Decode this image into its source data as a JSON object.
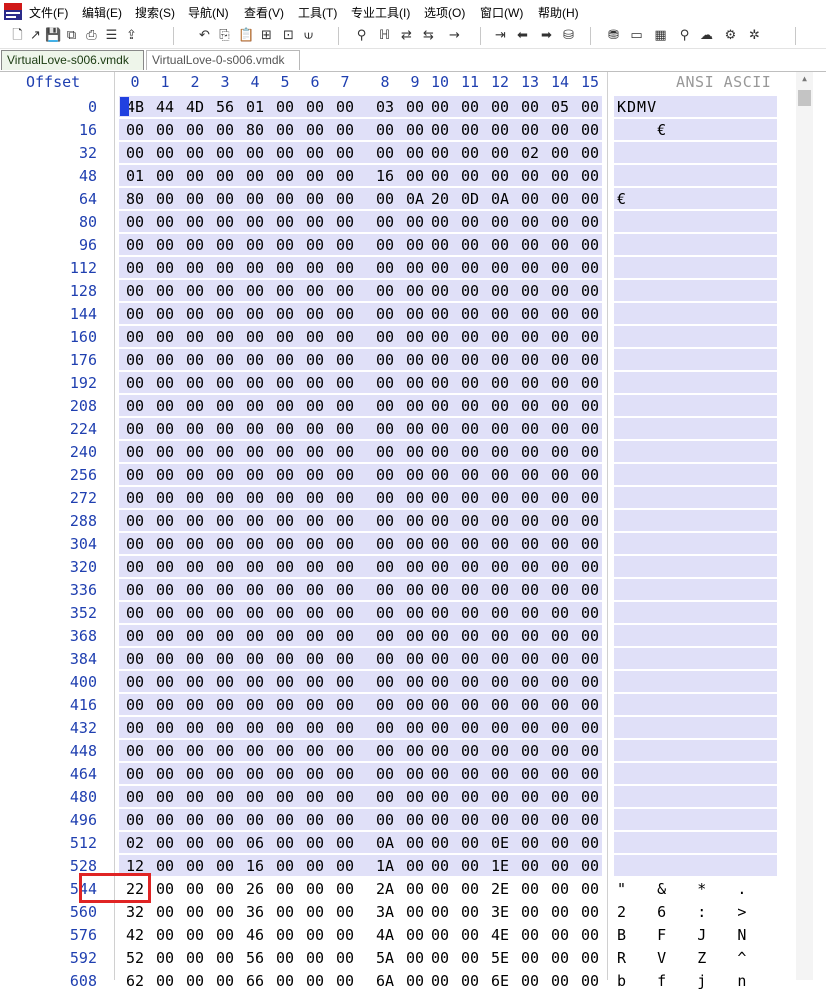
{
  "menu": [
    "文件(F)",
    "编辑(E)",
    "搜索(S)",
    "导航(N)",
    "查看(V)",
    "工具(T)",
    "专业工具(I)",
    "选项(O)",
    "窗口(W)",
    "帮助(H)"
  ],
  "toolbar_icons": [
    "new-file-icon",
    "open-file-icon",
    "save-icon",
    "save-all-icon",
    "print-icon",
    "properties-icon",
    "export-icon",
    "undo-icon",
    "copy-icon",
    "paste-icon",
    "paste-write-icon",
    "copy-block-icon",
    "binary-icon",
    "find-icon",
    "find-hex-icon",
    "replace-icon",
    "replace-hex-icon",
    "goto-offset-icon",
    "goto-sector-icon",
    "back-icon",
    "forward-icon",
    "disk-icon",
    "disk-editor-icon",
    "ram-icon",
    "calculator-icon",
    "search-disk-icon",
    "cloud-icon",
    "tools-icon",
    "settings-icon"
  ],
  "tabs": [
    {
      "label": "VirtualLove-s006.vmdk",
      "active": true
    },
    {
      "label": "VirtualLove-0-s006.vmdk",
      "active": false
    }
  ],
  "header": {
    "offset_label": "Offset",
    "columns": [
      "0",
      "1",
      "2",
      "3",
      "4",
      "5",
      "6",
      "7",
      "8",
      "9",
      "10",
      "11",
      "12",
      "13",
      "14",
      "15"
    ],
    "ascii_label": "ANSI ASCII"
  },
  "rows": [
    {
      "offset": "0",
      "bytes": [
        "4B",
        "44",
        "4D",
        "56",
        "01",
        "00",
        "00",
        "00",
        "03",
        "00",
        "00",
        "00",
        "00",
        "00",
        "05",
        "00"
      ],
      "ascii": "KDMV"
    },
    {
      "offset": "16",
      "bytes": [
        "00",
        "00",
        "00",
        "00",
        "80",
        "00",
        "00",
        "00",
        "00",
        "00",
        "00",
        "00",
        "00",
        "00",
        "00",
        "00"
      ],
      "ascii": "    €"
    },
    {
      "offset": "32",
      "bytes": [
        "00",
        "00",
        "00",
        "00",
        "00",
        "00",
        "00",
        "00",
        "00",
        "00",
        "00",
        "00",
        "00",
        "02",
        "00",
        "00"
      ],
      "ascii": ""
    },
    {
      "offset": "48",
      "bytes": [
        "01",
        "00",
        "00",
        "00",
        "00",
        "00",
        "00",
        "00",
        "16",
        "00",
        "00",
        "00",
        "00",
        "00",
        "00",
        "00"
      ],
      "ascii": ""
    },
    {
      "offset": "64",
      "bytes": [
        "80",
        "00",
        "00",
        "00",
        "00",
        "00",
        "00",
        "00",
        "00",
        "0A",
        "20",
        "0D",
        "0A",
        "00",
        "00",
        "00"
      ],
      "ascii": "€"
    },
    {
      "offset": "80",
      "bytes": [
        "00",
        "00",
        "00",
        "00",
        "00",
        "00",
        "00",
        "00",
        "00",
        "00",
        "00",
        "00",
        "00",
        "00",
        "00",
        "00"
      ],
      "ascii": ""
    },
    {
      "offset": "96",
      "bytes": [
        "00",
        "00",
        "00",
        "00",
        "00",
        "00",
        "00",
        "00",
        "00",
        "00",
        "00",
        "00",
        "00",
        "00",
        "00",
        "00"
      ],
      "ascii": ""
    },
    {
      "offset": "112",
      "bytes": [
        "00",
        "00",
        "00",
        "00",
        "00",
        "00",
        "00",
        "00",
        "00",
        "00",
        "00",
        "00",
        "00",
        "00",
        "00",
        "00"
      ],
      "ascii": ""
    },
    {
      "offset": "128",
      "bytes": [
        "00",
        "00",
        "00",
        "00",
        "00",
        "00",
        "00",
        "00",
        "00",
        "00",
        "00",
        "00",
        "00",
        "00",
        "00",
        "00"
      ],
      "ascii": ""
    },
    {
      "offset": "144",
      "bytes": [
        "00",
        "00",
        "00",
        "00",
        "00",
        "00",
        "00",
        "00",
        "00",
        "00",
        "00",
        "00",
        "00",
        "00",
        "00",
        "00"
      ],
      "ascii": ""
    },
    {
      "offset": "160",
      "bytes": [
        "00",
        "00",
        "00",
        "00",
        "00",
        "00",
        "00",
        "00",
        "00",
        "00",
        "00",
        "00",
        "00",
        "00",
        "00",
        "00"
      ],
      "ascii": ""
    },
    {
      "offset": "176",
      "bytes": [
        "00",
        "00",
        "00",
        "00",
        "00",
        "00",
        "00",
        "00",
        "00",
        "00",
        "00",
        "00",
        "00",
        "00",
        "00",
        "00"
      ],
      "ascii": ""
    },
    {
      "offset": "192",
      "bytes": [
        "00",
        "00",
        "00",
        "00",
        "00",
        "00",
        "00",
        "00",
        "00",
        "00",
        "00",
        "00",
        "00",
        "00",
        "00",
        "00"
      ],
      "ascii": ""
    },
    {
      "offset": "208",
      "bytes": [
        "00",
        "00",
        "00",
        "00",
        "00",
        "00",
        "00",
        "00",
        "00",
        "00",
        "00",
        "00",
        "00",
        "00",
        "00",
        "00"
      ],
      "ascii": ""
    },
    {
      "offset": "224",
      "bytes": [
        "00",
        "00",
        "00",
        "00",
        "00",
        "00",
        "00",
        "00",
        "00",
        "00",
        "00",
        "00",
        "00",
        "00",
        "00",
        "00"
      ],
      "ascii": ""
    },
    {
      "offset": "240",
      "bytes": [
        "00",
        "00",
        "00",
        "00",
        "00",
        "00",
        "00",
        "00",
        "00",
        "00",
        "00",
        "00",
        "00",
        "00",
        "00",
        "00"
      ],
      "ascii": ""
    },
    {
      "offset": "256",
      "bytes": [
        "00",
        "00",
        "00",
        "00",
        "00",
        "00",
        "00",
        "00",
        "00",
        "00",
        "00",
        "00",
        "00",
        "00",
        "00",
        "00"
      ],
      "ascii": ""
    },
    {
      "offset": "272",
      "bytes": [
        "00",
        "00",
        "00",
        "00",
        "00",
        "00",
        "00",
        "00",
        "00",
        "00",
        "00",
        "00",
        "00",
        "00",
        "00",
        "00"
      ],
      "ascii": ""
    },
    {
      "offset": "288",
      "bytes": [
        "00",
        "00",
        "00",
        "00",
        "00",
        "00",
        "00",
        "00",
        "00",
        "00",
        "00",
        "00",
        "00",
        "00",
        "00",
        "00"
      ],
      "ascii": ""
    },
    {
      "offset": "304",
      "bytes": [
        "00",
        "00",
        "00",
        "00",
        "00",
        "00",
        "00",
        "00",
        "00",
        "00",
        "00",
        "00",
        "00",
        "00",
        "00",
        "00"
      ],
      "ascii": ""
    },
    {
      "offset": "320",
      "bytes": [
        "00",
        "00",
        "00",
        "00",
        "00",
        "00",
        "00",
        "00",
        "00",
        "00",
        "00",
        "00",
        "00",
        "00",
        "00",
        "00"
      ],
      "ascii": ""
    },
    {
      "offset": "336",
      "bytes": [
        "00",
        "00",
        "00",
        "00",
        "00",
        "00",
        "00",
        "00",
        "00",
        "00",
        "00",
        "00",
        "00",
        "00",
        "00",
        "00"
      ],
      "ascii": ""
    },
    {
      "offset": "352",
      "bytes": [
        "00",
        "00",
        "00",
        "00",
        "00",
        "00",
        "00",
        "00",
        "00",
        "00",
        "00",
        "00",
        "00",
        "00",
        "00",
        "00"
      ],
      "ascii": ""
    },
    {
      "offset": "368",
      "bytes": [
        "00",
        "00",
        "00",
        "00",
        "00",
        "00",
        "00",
        "00",
        "00",
        "00",
        "00",
        "00",
        "00",
        "00",
        "00",
        "00"
      ],
      "ascii": ""
    },
    {
      "offset": "384",
      "bytes": [
        "00",
        "00",
        "00",
        "00",
        "00",
        "00",
        "00",
        "00",
        "00",
        "00",
        "00",
        "00",
        "00",
        "00",
        "00",
        "00"
      ],
      "ascii": ""
    },
    {
      "offset": "400",
      "bytes": [
        "00",
        "00",
        "00",
        "00",
        "00",
        "00",
        "00",
        "00",
        "00",
        "00",
        "00",
        "00",
        "00",
        "00",
        "00",
        "00"
      ],
      "ascii": ""
    },
    {
      "offset": "416",
      "bytes": [
        "00",
        "00",
        "00",
        "00",
        "00",
        "00",
        "00",
        "00",
        "00",
        "00",
        "00",
        "00",
        "00",
        "00",
        "00",
        "00"
      ],
      "ascii": ""
    },
    {
      "offset": "432",
      "bytes": [
        "00",
        "00",
        "00",
        "00",
        "00",
        "00",
        "00",
        "00",
        "00",
        "00",
        "00",
        "00",
        "00",
        "00",
        "00",
        "00"
      ],
      "ascii": ""
    },
    {
      "offset": "448",
      "bytes": [
        "00",
        "00",
        "00",
        "00",
        "00",
        "00",
        "00",
        "00",
        "00",
        "00",
        "00",
        "00",
        "00",
        "00",
        "00",
        "00"
      ],
      "ascii": ""
    },
    {
      "offset": "464",
      "bytes": [
        "00",
        "00",
        "00",
        "00",
        "00",
        "00",
        "00",
        "00",
        "00",
        "00",
        "00",
        "00",
        "00",
        "00",
        "00",
        "00"
      ],
      "ascii": ""
    },
    {
      "offset": "480",
      "bytes": [
        "00",
        "00",
        "00",
        "00",
        "00",
        "00",
        "00",
        "00",
        "00",
        "00",
        "00",
        "00",
        "00",
        "00",
        "00",
        "00"
      ],
      "ascii": ""
    },
    {
      "offset": "496",
      "bytes": [
        "00",
        "00",
        "00",
        "00",
        "00",
        "00",
        "00",
        "00",
        "00",
        "00",
        "00",
        "00",
        "00",
        "00",
        "00",
        "00"
      ],
      "ascii": ""
    },
    {
      "offset": "512",
      "bytes": [
        "02",
        "00",
        "00",
        "00",
        "06",
        "00",
        "00",
        "00",
        "0A",
        "00",
        "00",
        "00",
        "0E",
        "00",
        "00",
        "00"
      ],
      "ascii": ""
    },
    {
      "offset": "528",
      "bytes": [
        "12",
        "00",
        "00",
        "00",
        "16",
        "00",
        "00",
        "00",
        "1A",
        "00",
        "00",
        "00",
        "1E",
        "00",
        "00",
        "00"
      ],
      "ascii": ""
    },
    {
      "offset": "544",
      "bytes": [
        "22",
        "00",
        "00",
        "00",
        "26",
        "00",
        "00",
        "00",
        "2A",
        "00",
        "00",
        "00",
        "2E",
        "00",
        "00",
        "00"
      ],
      "ascii": "\"   &   *   ."
    },
    {
      "offset": "560",
      "bytes": [
        "32",
        "00",
        "00",
        "00",
        "36",
        "00",
        "00",
        "00",
        "3A",
        "00",
        "00",
        "00",
        "3E",
        "00",
        "00",
        "00"
      ],
      "ascii": "2   6   :   >"
    },
    {
      "offset": "576",
      "bytes": [
        "42",
        "00",
        "00",
        "00",
        "46",
        "00",
        "00",
        "00",
        "4A",
        "00",
        "00",
        "00",
        "4E",
        "00",
        "00",
        "00"
      ],
      "ascii": "B   F   J   N"
    },
    {
      "offset": "592",
      "bytes": [
        "52",
        "00",
        "00",
        "00",
        "56",
        "00",
        "00",
        "00",
        "5A",
        "00",
        "00",
        "00",
        "5E",
        "00",
        "00",
        "00"
      ],
      "ascii": "R   V   Z   ^"
    },
    {
      "offset": "608",
      "bytes": [
        "62",
        "00",
        "00",
        "00",
        "66",
        "00",
        "00",
        "00",
        "6A",
        "00",
        "00",
        "00",
        "6E",
        "00",
        "00",
        "00"
      ],
      "ascii": "b   f   j   n"
    }
  ],
  "selected_rows": 34,
  "highlight": {
    "offset": "544",
    "byte": "22"
  }
}
